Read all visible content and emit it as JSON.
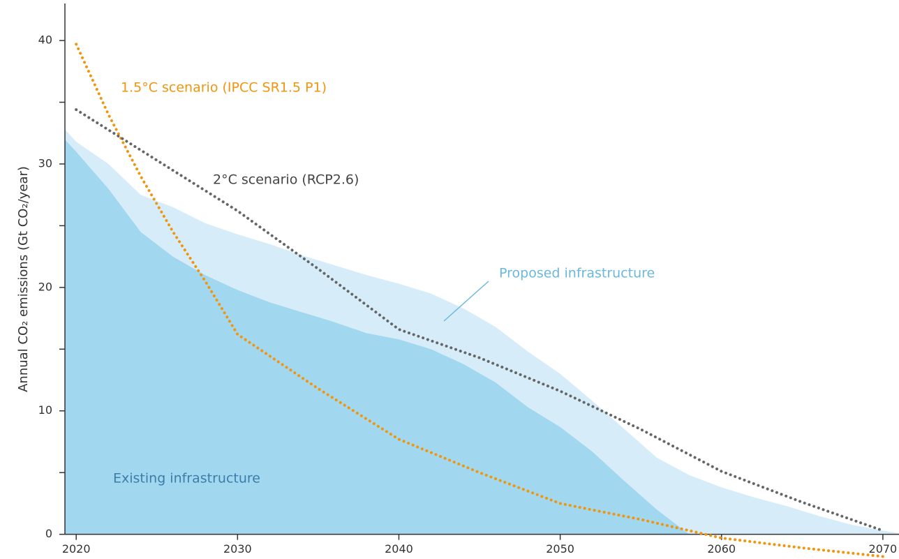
{
  "chart_data": {
    "type": "area",
    "y_label": "Annual CO₂ emissions (Gt CO₂/year)",
    "xlim": [
      2019.3,
      2071
    ],
    "ylim": [
      -2,
      43
    ],
    "xticks": [
      2020,
      2030,
      2040,
      2050,
      2060,
      2070
    ],
    "yticks": [
      0,
      10,
      20,
      30,
      40
    ],
    "yminorticks": [
      5,
      15,
      25,
      35
    ],
    "x": [
      2019.3,
      2020,
      2022,
      2024,
      2026,
      2028,
      2030,
      2032,
      2034,
      2036,
      2038,
      2040,
      2042,
      2044,
      2046,
      2048,
      2050,
      2052,
      2054,
      2056,
      2058,
      2060,
      2062,
      2064,
      2066,
      2068,
      2070,
      2071
    ],
    "series": [
      {
        "name": "Existing infrastructure",
        "type": "area",
        "color": "#a2d7f0",
        "values": [
          32,
          31,
          28,
          24.5,
          22.5,
          21,
          19.8,
          18.8,
          18,
          17.2,
          16.3,
          15.8,
          15,
          13.8,
          12.3,
          10.3,
          8.7,
          6.7,
          4.3,
          2,
          0,
          0,
          0,
          0,
          0,
          0,
          0,
          0
        ]
      },
      {
        "name": "Proposed infrastructure",
        "type": "area",
        "color": "#d6edf9",
        "values": [
          0.8,
          0.8,
          2,
          3,
          4,
          4.2,
          4.5,
          4.7,
          4.6,
          4.6,
          4.7,
          4.5,
          4.5,
          4.5,
          4.5,
          4.5,
          4.3,
          4.1,
          4.2,
          4.2,
          4.8,
          3.8,
          3,
          2.3,
          1.5,
          0.8,
          0.3,
          0.1
        ]
      },
      {
        "name": "1.5°C scenario (IPCC SR1.5 P1)",
        "type": "line",
        "color": "#f0960e",
        "x": [
          2020,
          2022,
          2024,
          2026,
          2028,
          2030,
          2035,
          2040,
          2045,
          2050,
          2055,
          2060,
          2065,
          2070
        ],
        "values": [
          39.7,
          34,
          29,
          24.5,
          20.5,
          16.2,
          11.8,
          7.7,
          5,
          2.5,
          1.2,
          -0.3,
          -1.1,
          -1.8
        ]
      },
      {
        "name": "2°C scenario (RCP2.6)",
        "type": "line",
        "color": "#666666",
        "x": [
          2020,
          2025,
          2030,
          2035,
          2040,
          2045,
          2050,
          2055,
          2060,
          2065,
          2070
        ],
        "values": [
          34.4,
          30.3,
          26.2,
          21.5,
          16.6,
          14.3,
          11.6,
          8.5,
          5.1,
          2.6,
          0.3
        ]
      }
    ]
  }
}
